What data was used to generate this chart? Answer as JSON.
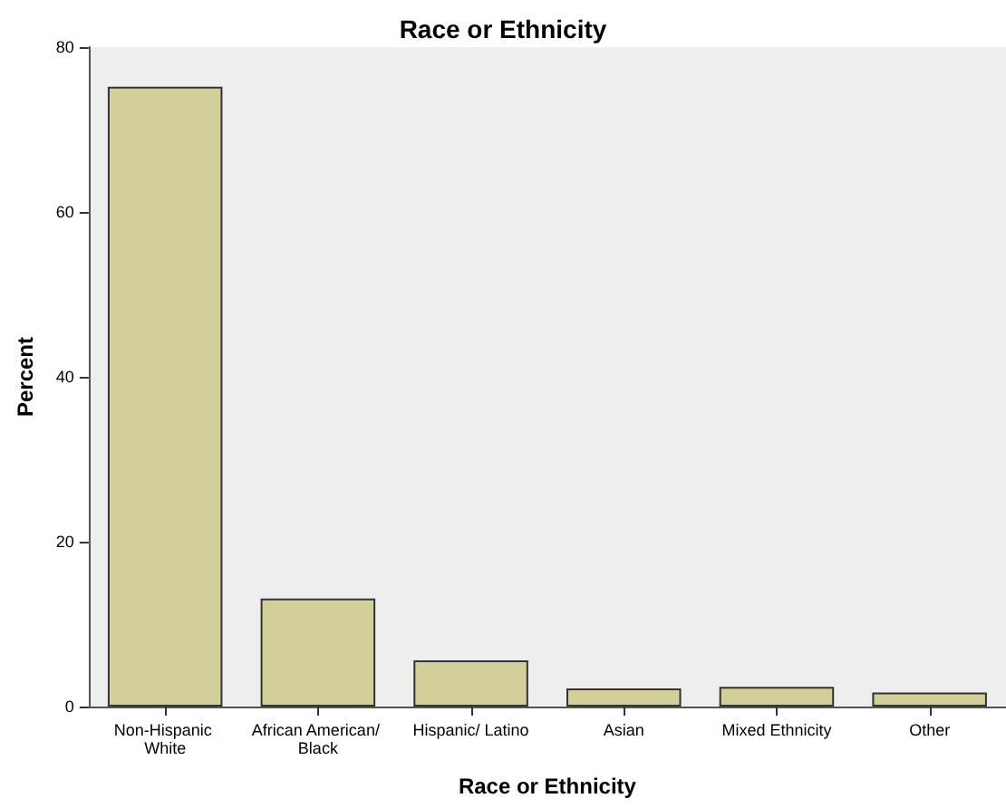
{
  "chart_data": {
    "type": "bar",
    "title": "Race or Ethnicity",
    "xlabel": "Race or Ethnicity",
    "ylabel": "Percent",
    "categories": [
      "Non-Hispanic White",
      "African American/ Black",
      "Hispanic/ Latino",
      "Asian",
      "Mixed Ethnicity",
      "Other"
    ],
    "values": [
      75.2,
      13.1,
      5.6,
      2.2,
      2.4,
      1.7
    ],
    "color": "#d3cf99",
    "ylim": [
      0,
      80
    ],
    "yticks": [
      0,
      20,
      40,
      60,
      80
    ],
    "grid": false
  }
}
